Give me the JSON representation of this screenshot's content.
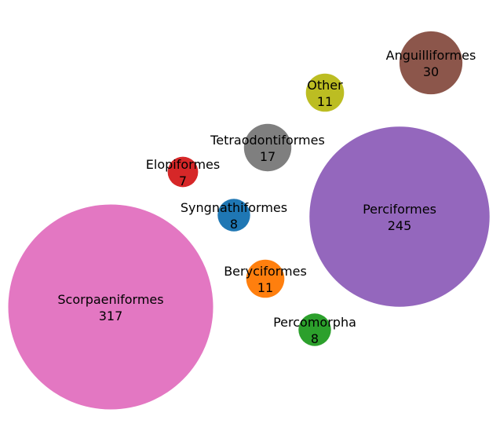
{
  "chart_data": {
    "type": "bubble",
    "title": "",
    "legend": "none",
    "grid": false,
    "bubbles": [
      {
        "name": "Scorpaeniformes",
        "value": 317,
        "color": "#e377c2"
      },
      {
        "name": "Perciformes",
        "value": 245,
        "color": "#9467bd"
      },
      {
        "name": "Anguilliformes",
        "value": 30,
        "color": "#8c564b"
      },
      {
        "name": "Tetraodontiformes",
        "value": 17,
        "color": "#7f7f7f"
      },
      {
        "name": "Other",
        "value": 11,
        "color": "#bcbd22"
      },
      {
        "name": "Beryciformes",
        "value": 11,
        "color": "#ff7f0e"
      },
      {
        "name": "Syngnathiformes",
        "value": 8,
        "color": "#1f77b4"
      },
      {
        "name": "Percomorpha",
        "value": 8,
        "color": "#2ca02c"
      },
      {
        "name": "Elopiformes",
        "value": 7,
        "color": "#d62728"
      }
    ]
  }
}
